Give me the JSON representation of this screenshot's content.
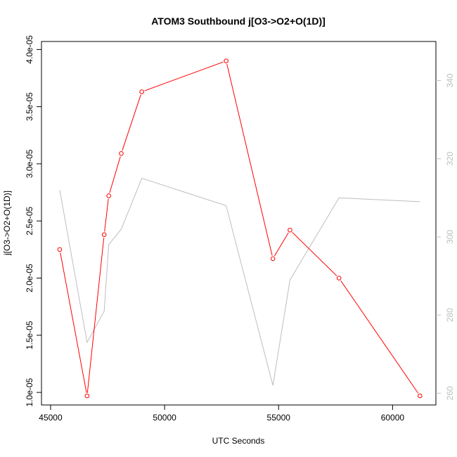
{
  "chart_data": {
    "type": "line",
    "title": "ATOM3 Southbound j[O3->O2+O(1D)]",
    "xlabel": "UTC Seconds",
    "ylabel": "j[O3->O2+O(1D)]",
    "xlim": [
      44600,
      61900
    ],
    "ylim": [
      8.9e-06,
      4.07e-05
    ],
    "y2lim": [
      257,
      350
    ],
    "xticks": [
      45000,
      50000,
      55000,
      60000
    ],
    "xtick_labels": [
      "45000",
      "50000",
      "55000",
      "60000"
    ],
    "yticks": [
      1e-05,
      1.5e-05,
      2e-05,
      2.5e-05,
      3e-05,
      3.5e-05,
      4e-05
    ],
    "ytick_labels": [
      "1.0e-05",
      "1.5e-05",
      "2.0e-05",
      "2.5e-05",
      "3.0e-05",
      "3.5e-05",
      "4.0e-05"
    ],
    "y2ticks": [
      260,
      280,
      300,
      320,
      340
    ],
    "y2tick_labels": [
      "260",
      "280",
      "300",
      "320",
      "340"
    ],
    "x": [
      45400,
      46600,
      47350,
      47550,
      48100,
      49000,
      52700,
      54750,
      55500,
      57650,
      61200
    ],
    "series": [
      {
        "axis": "left",
        "color": "#ff0000",
        "markers": true,
        "values": [
          2.25e-05,
          9.7e-06,
          2.38e-05,
          2.72e-05,
          3.09e-05,
          3.63e-05,
          3.9e-05,
          2.17e-05,
          2.42e-05,
          2e-05,
          9.7e-06
        ]
      },
      {
        "axis": "right",
        "color": "#bebebe",
        "markers": false,
        "values": [
          312,
          273,
          281,
          298,
          302,
          315,
          308,
          262,
          289,
          310,
          309
        ]
      }
    ],
    "grid": false,
    "legend": "none"
  }
}
